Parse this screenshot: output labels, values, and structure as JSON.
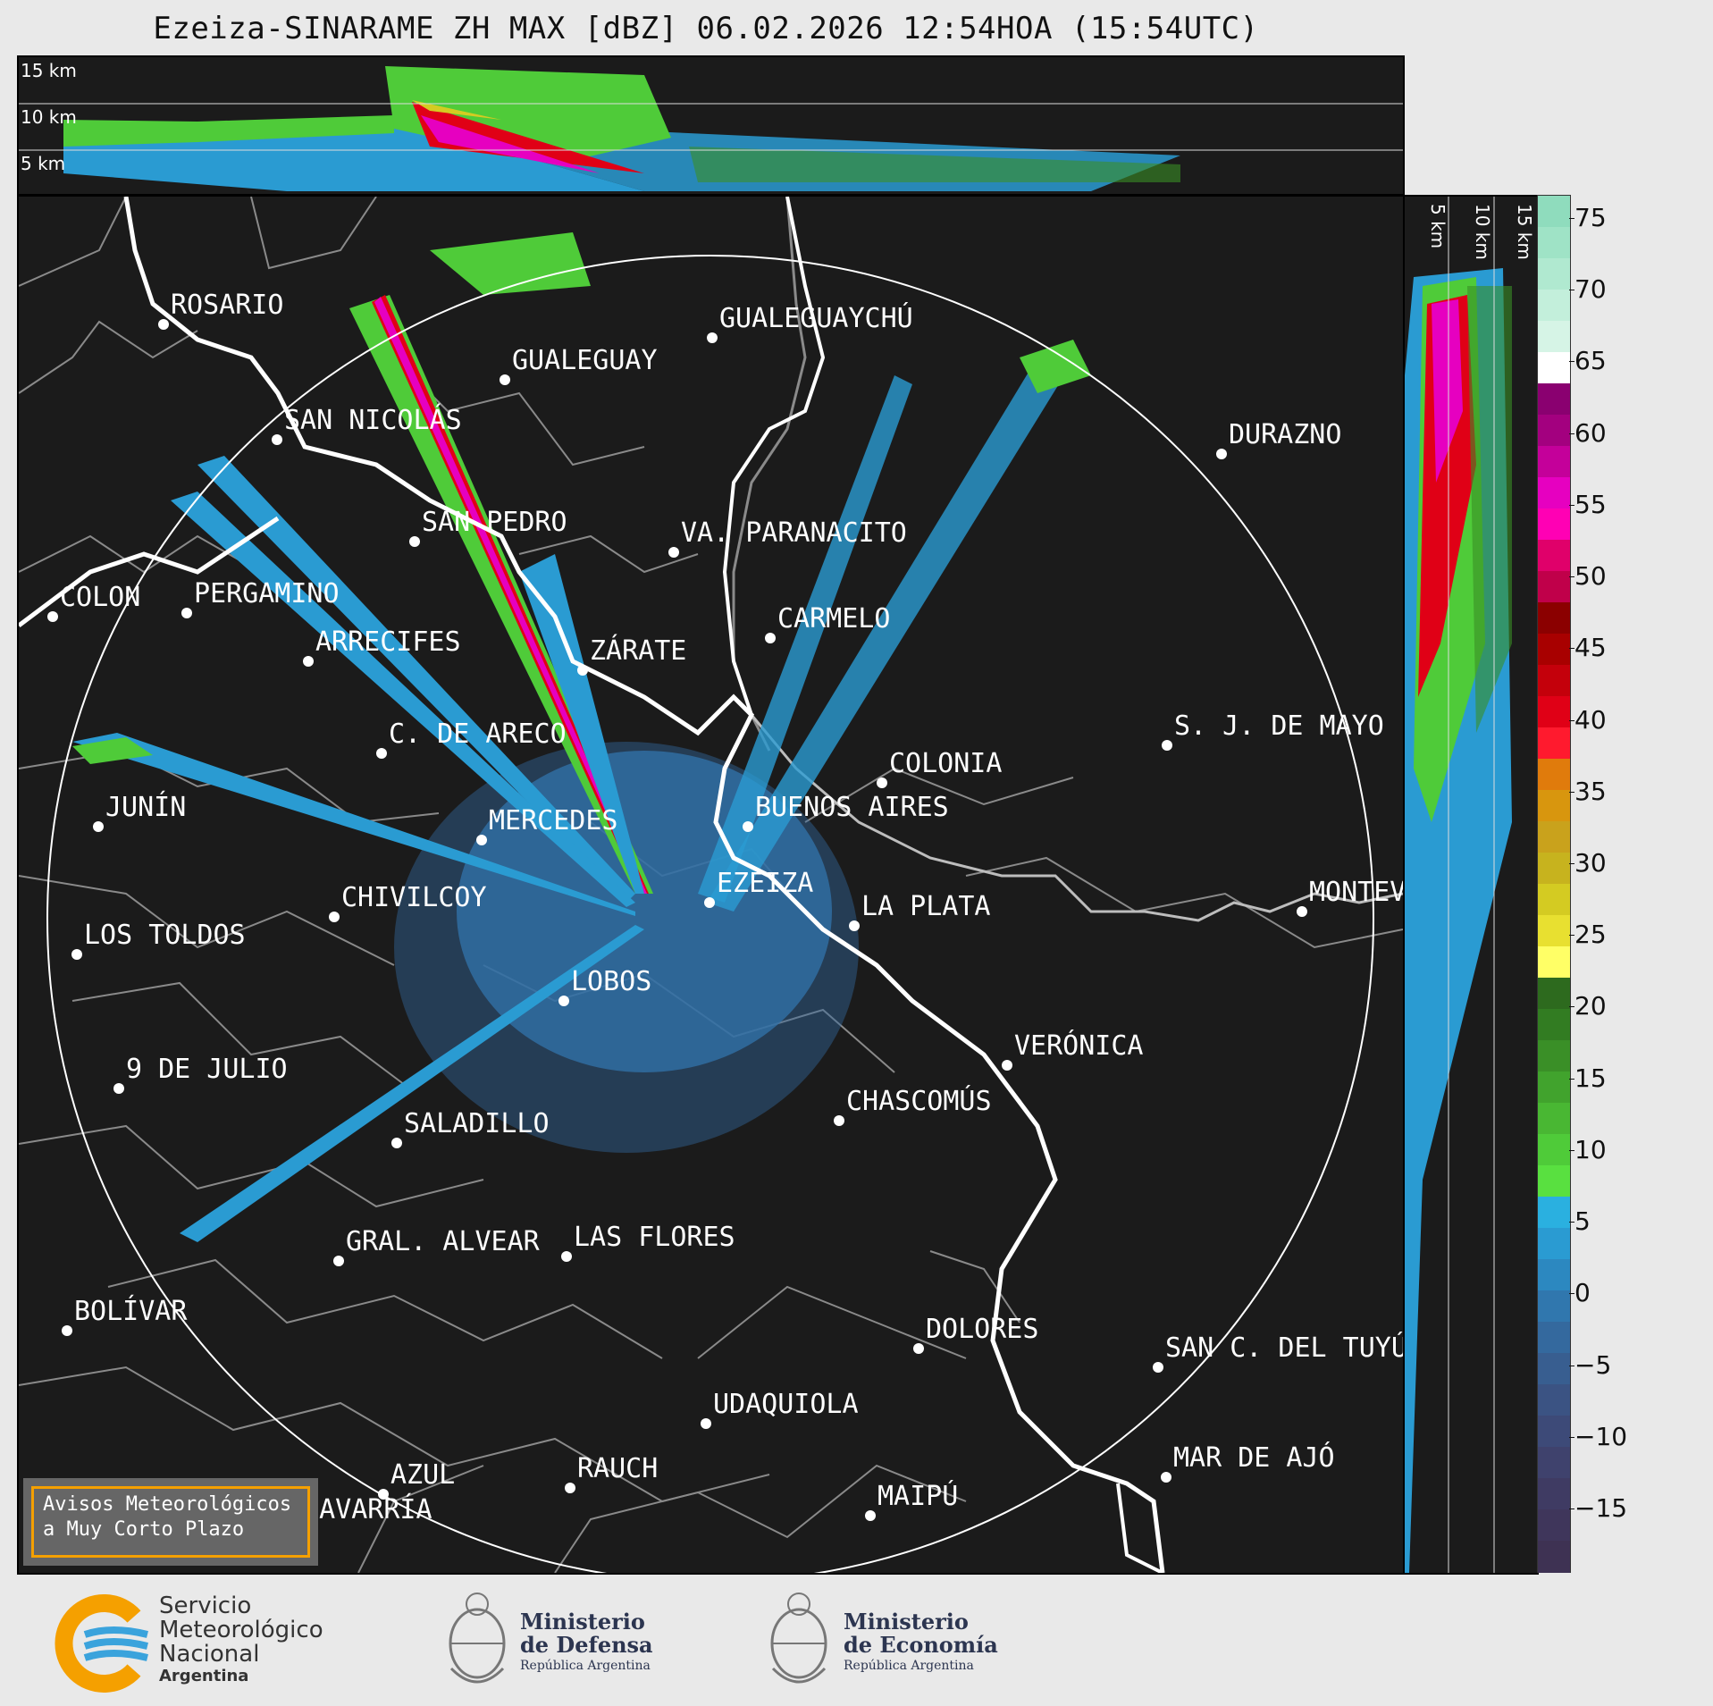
{
  "title": "Ezeiza-SINARAME ZH MAX [dBZ] 06.02.2026 12:54HOA (15:54UTC)",
  "top_panel": {
    "height_labels": [
      "15 km",
      "10 km",
      "5 km"
    ]
  },
  "side_panel": {
    "height_labels": [
      "5 km",
      "10 km",
      "15 km"
    ]
  },
  "colorbar": {
    "unit": "dBZ",
    "ticks": [
      "75",
      "70",
      "65",
      "60",
      "55",
      "50",
      "45",
      "40",
      "35",
      "30",
      "25",
      "20",
      "15",
      "10",
      "5",
      "0",
      "−5",
      "−10",
      "−15"
    ],
    "segments": [
      "#8fdcbd",
      "#9fe3c6",
      "#b0e9d0",
      "#c3efdb",
      "#d6f4e6",
      "#ffffff",
      "#8a0070",
      "#a3007f",
      "#c4009a",
      "#e600c0",
      "#ff00b4",
      "#e0006a",
      "#c0004a",
      "#8b0000",
      "#a80000",
      "#c4000b",
      "#e00016",
      "#ff1a2e",
      "#e07b0c",
      "#d8960e",
      "#c9a21c",
      "#c7b31e",
      "#d4cb22",
      "#e8e030",
      "#ffff66",
      "#2d6a1e",
      "#327c22",
      "#3a8f27",
      "#41a32d",
      "#49b733",
      "#4fcb39",
      "#59e040",
      "#2ab0e0",
      "#2a9bd2",
      "#2c88c0",
      "#3077ae",
      "#34699e",
      "#385e90",
      "#3b5383",
      "#3d4a78",
      "#3f426d",
      "#3f3b63",
      "#3f365b",
      "#3e3253"
    ],
    "segment_colors_note": ""
  },
  "cities": [
    {
      "name": "ROSARIO"
    },
    {
      "name": "GUALEGUAYCHÚ"
    },
    {
      "name": "GUALEGUAY"
    },
    {
      "name": "SAN NICOLÁS"
    },
    {
      "name": "DURAZNO"
    },
    {
      "name": "SAN PEDRO"
    },
    {
      "name": "VA. PARANACITO"
    },
    {
      "name": "COLON"
    },
    {
      "name": "PERGAMINO"
    },
    {
      "name": "CARMELO"
    },
    {
      "name": "ARRECIFES"
    },
    {
      "name": "ZÁRATE"
    },
    {
      "name": "S. J. DE MAYO"
    },
    {
      "name": "C. DE ARECO"
    },
    {
      "name": "COLONIA"
    },
    {
      "name": "JUNÍN"
    },
    {
      "name": "MERCEDES"
    },
    {
      "name": "BUENOS AIRES"
    },
    {
      "name": "MONTEVIDEO"
    },
    {
      "name": "CHIVILCOY"
    },
    {
      "name": "EZEIZA"
    },
    {
      "name": "LA PLATA"
    },
    {
      "name": "LOS TOLDOS"
    },
    {
      "name": "LOBOS"
    },
    {
      "name": "VERÓNICA"
    },
    {
      "name": "9 DE JULIO"
    },
    {
      "name": "CHASCOMÚS"
    },
    {
      "name": "SALADILLO"
    },
    {
      "name": "GRAL. ALVEAR"
    },
    {
      "name": "LAS FLORES"
    },
    {
      "name": "BOLÍVAR"
    },
    {
      "name": "DOLORES"
    },
    {
      "name": "SAN C. DEL TUYÚ"
    },
    {
      "name": "UDAQUIOLA"
    },
    {
      "name": "MAR DE AJÓ"
    },
    {
      "name": "AZUL"
    },
    {
      "name": "RAUCH"
    },
    {
      "name": "OLAVARRÍA"
    },
    {
      "name": "MAIPÚ"
    }
  ],
  "warning_box": {
    "line1": "Avisos Meteorológicos",
    "line2": "a Muy Corto Plazo"
  },
  "logos": {
    "smn": {
      "line1": "Servicio",
      "line2": "Meteorológico",
      "line3": "Nacional",
      "line4": "Argentina"
    },
    "defensa": {
      "line1": "Ministerio",
      "line2": "de Defensa",
      "line3": "República Argentina"
    },
    "economia": {
      "line1": "Ministerio",
      "line2": "de Economía",
      "line3": "República Argentina"
    }
  },
  "colors": {
    "background": "#1b1b1b",
    "page": "#e9e9e9",
    "coast": "#ffffff",
    "borders": "#888888",
    "accent_box": "#f5a000"
  }
}
